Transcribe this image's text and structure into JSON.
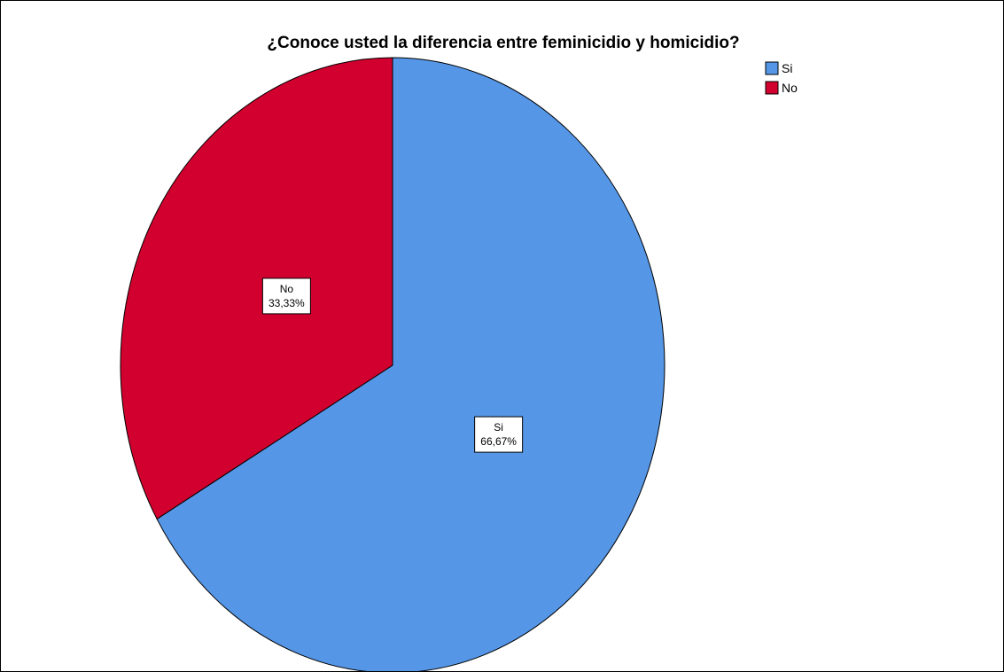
{
  "chart_data": {
    "type": "pie",
    "title": "¿Conoce usted la diferencia entre feminicidio y homicidio?",
    "slices": [
      {
        "label": "Si",
        "value": 66.67,
        "value_label": "66,67%",
        "color": "#5596E6"
      },
      {
        "label": "No",
        "value": 33.33,
        "value_label": "33,33%",
        "color": "#D2002E"
      }
    ],
    "legend": {
      "position": "top-right",
      "entries": [
        "Si",
        "No"
      ]
    },
    "start_angle_deg": 0,
    "direction": "clockwise"
  }
}
